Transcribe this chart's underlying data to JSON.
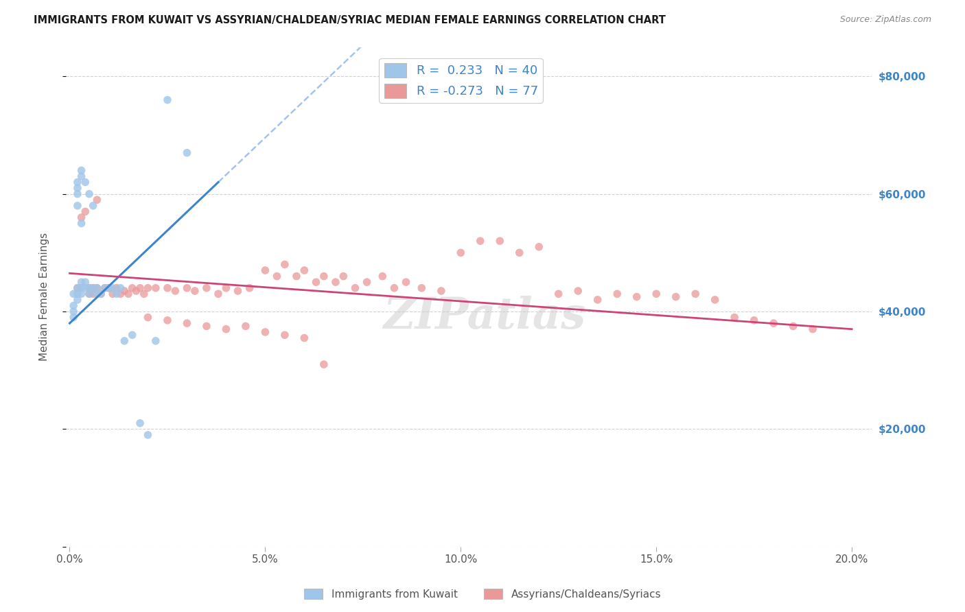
{
  "title": "IMMIGRANTS FROM KUWAIT VS ASSYRIAN/CHALDEAN/SYRIAC MEDIAN FEMALE EARNINGS CORRELATION CHART",
  "source": "Source: ZipAtlas.com",
  "xlabel_ticks": [
    "0.0%",
    "5.0%",
    "10.0%",
    "15.0%",
    "20.0%"
  ],
  "xlabel_tick_vals": [
    0.0,
    0.05,
    0.1,
    0.15,
    0.2
  ],
  "ylabel": "Median Female Earnings",
  "ylabel_ticks": [
    0,
    20000,
    40000,
    60000,
    80000
  ],
  "ylabel_tick_labels": [
    "",
    "$20,000",
    "$40,000",
    "$60,000",
    "$80,000"
  ],
  "xlim": [
    -0.001,
    0.205
  ],
  "ylim": [
    0,
    85000
  ],
  "legend_label1": "Immigrants from Kuwait",
  "legend_label2": "Assyrians/Chaldeans/Syriacs",
  "r1": 0.233,
  "n1": 40,
  "r2": -0.273,
  "n2": 77,
  "blue_color": "#9fc5e8",
  "pink_color": "#ea9999",
  "blue_line_color": "#3d85c8",
  "pink_line_color": "#cc4478",
  "dashed_line_color": "#a4c2f4",
  "watermark": "ZIPatlas",
  "blue_scatter_x": [
    0.001,
    0.001,
    0.001,
    0.001,
    0.002,
    0.002,
    0.002,
    0.002,
    0.002,
    0.002,
    0.002,
    0.003,
    0.003,
    0.003,
    0.003,
    0.003,
    0.003,
    0.004,
    0.004,
    0.004,
    0.005,
    0.005,
    0.005,
    0.006,
    0.006,
    0.007,
    0.007,
    0.008,
    0.009,
    0.01,
    0.011,
    0.012,
    0.013,
    0.014,
    0.016,
    0.018,
    0.02,
    0.022,
    0.025,
    0.03
  ],
  "blue_scatter_y": [
    43000,
    41000,
    40000,
    39000,
    62000,
    61000,
    60000,
    58000,
    44000,
    43000,
    42000,
    64000,
    63000,
    55000,
    45000,
    44000,
    43000,
    62000,
    45000,
    44000,
    60000,
    44000,
    43000,
    58000,
    44000,
    44000,
    43000,
    43000,
    44000,
    44000,
    44000,
    43000,
    44000,
    35000,
    36000,
    21000,
    19000,
    35000,
    76000,
    67000
  ],
  "pink_scatter_x": [
    0.002,
    0.003,
    0.004,
    0.005,
    0.005,
    0.006,
    0.006,
    0.007,
    0.007,
    0.008,
    0.009,
    0.01,
    0.011,
    0.012,
    0.013,
    0.014,
    0.015,
    0.016,
    0.017,
    0.018,
    0.019,
    0.02,
    0.022,
    0.025,
    0.027,
    0.03,
    0.032,
    0.035,
    0.038,
    0.04,
    0.043,
    0.046,
    0.05,
    0.053,
    0.055,
    0.058,
    0.06,
    0.063,
    0.065,
    0.068,
    0.07,
    0.073,
    0.076,
    0.08,
    0.083,
    0.086,
    0.09,
    0.095,
    0.1,
    0.105,
    0.11,
    0.115,
    0.12,
    0.125,
    0.13,
    0.135,
    0.14,
    0.145,
    0.15,
    0.155,
    0.16,
    0.165,
    0.17,
    0.175,
    0.18,
    0.185,
    0.19,
    0.02,
    0.025,
    0.03,
    0.035,
    0.04,
    0.045,
    0.05,
    0.055,
    0.06,
    0.065
  ],
  "pink_scatter_y": [
    44000,
    56000,
    57000,
    44000,
    43000,
    44000,
    43000,
    59000,
    44000,
    43000,
    44000,
    44000,
    43000,
    44000,
    43000,
    43500,
    43000,
    44000,
    43500,
    44000,
    43000,
    44000,
    44000,
    44000,
    43500,
    44000,
    43500,
    44000,
    43000,
    44000,
    43500,
    44000,
    47000,
    46000,
    48000,
    46000,
    47000,
    45000,
    46000,
    45000,
    46000,
    44000,
    45000,
    46000,
    44000,
    45000,
    44000,
    43500,
    50000,
    52000,
    52000,
    50000,
    51000,
    43000,
    43500,
    42000,
    43000,
    42500,
    43000,
    42500,
    43000,
    42000,
    39000,
    38500,
    38000,
    37500,
    37000,
    39000,
    38500,
    38000,
    37500,
    37000,
    37500,
    36500,
    36000,
    35500,
    31000
  ]
}
